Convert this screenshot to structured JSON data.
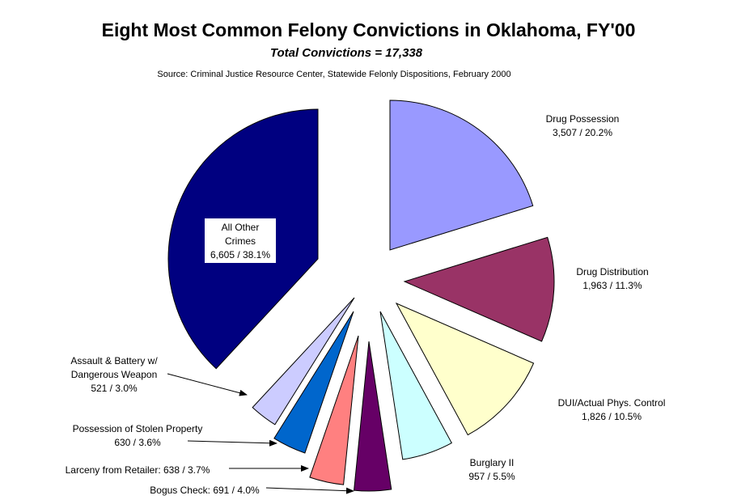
{
  "title": "Eight Most Common Felony Convictions in Oklahoma, FY'00",
  "subtitle": "Total Convictions = 17,338",
  "source": "Source: Criminal Justice Resource Center, Statewide Felonly Dispositions, February 2000",
  "chart_data": {
    "type": "pie",
    "title": "Eight Most Common Felony Convictions in Oklahoma, FY'00",
    "subtitle": "Total Convictions = 17,338",
    "total": 17338,
    "slices": [
      {
        "name": "Drug Possession",
        "value": 3507,
        "percent": 20.2,
        "color": "#9999ff",
        "label_lines": [
          "Drug Possession",
          "3,507 / 20.2%"
        ]
      },
      {
        "name": "Drug Distribution",
        "value": 1963,
        "percent": 11.3,
        "color": "#993366",
        "label_lines": [
          "Drug Distribution",
          "1,963 / 11.3%"
        ]
      },
      {
        "name": "DUI/Actual Phys. Control",
        "value": 1826,
        "percent": 10.5,
        "color": "#ffffcc",
        "label_lines": [
          "DUI/Actual Phys. Control",
          "1,826 / 10.5%"
        ]
      },
      {
        "name": "Burglary II",
        "value": 957,
        "percent": 5.5,
        "color": "#ccffff",
        "label_lines": [
          "Burglary II",
          "957 / 5.5%"
        ]
      },
      {
        "name": "Bogus Check",
        "value": 691,
        "percent": 4.0,
        "color": "#660066",
        "label_lines": [
          "Bogus Check: 691 / 4.0%"
        ]
      },
      {
        "name": "Larceny from Retailer",
        "value": 638,
        "percent": 3.7,
        "color": "#ff8080",
        "label_lines": [
          "Larceny from Retailer: 638 / 3.7%"
        ]
      },
      {
        "name": "Possession of Stolen Property",
        "value": 630,
        "percent": 3.6,
        "color": "#0066cc",
        "label_lines": [
          "Possession of Stolen Property",
          "630 / 3.6%"
        ]
      },
      {
        "name": "Assault & Battery w/ Dangerous Weapon",
        "value": 521,
        "percent": 3.0,
        "color": "#ccccff",
        "label_lines": [
          "Assault & Battery w/",
          "Dangerous Weapon",
          "521 / 3.0%"
        ]
      },
      {
        "name": "All Other Crimes",
        "value": 6605,
        "percent": 38.1,
        "color": "#000080",
        "label_lines": [
          "All Other",
          "Crimes",
          "6,605 / 38.1%"
        ]
      }
    ]
  }
}
